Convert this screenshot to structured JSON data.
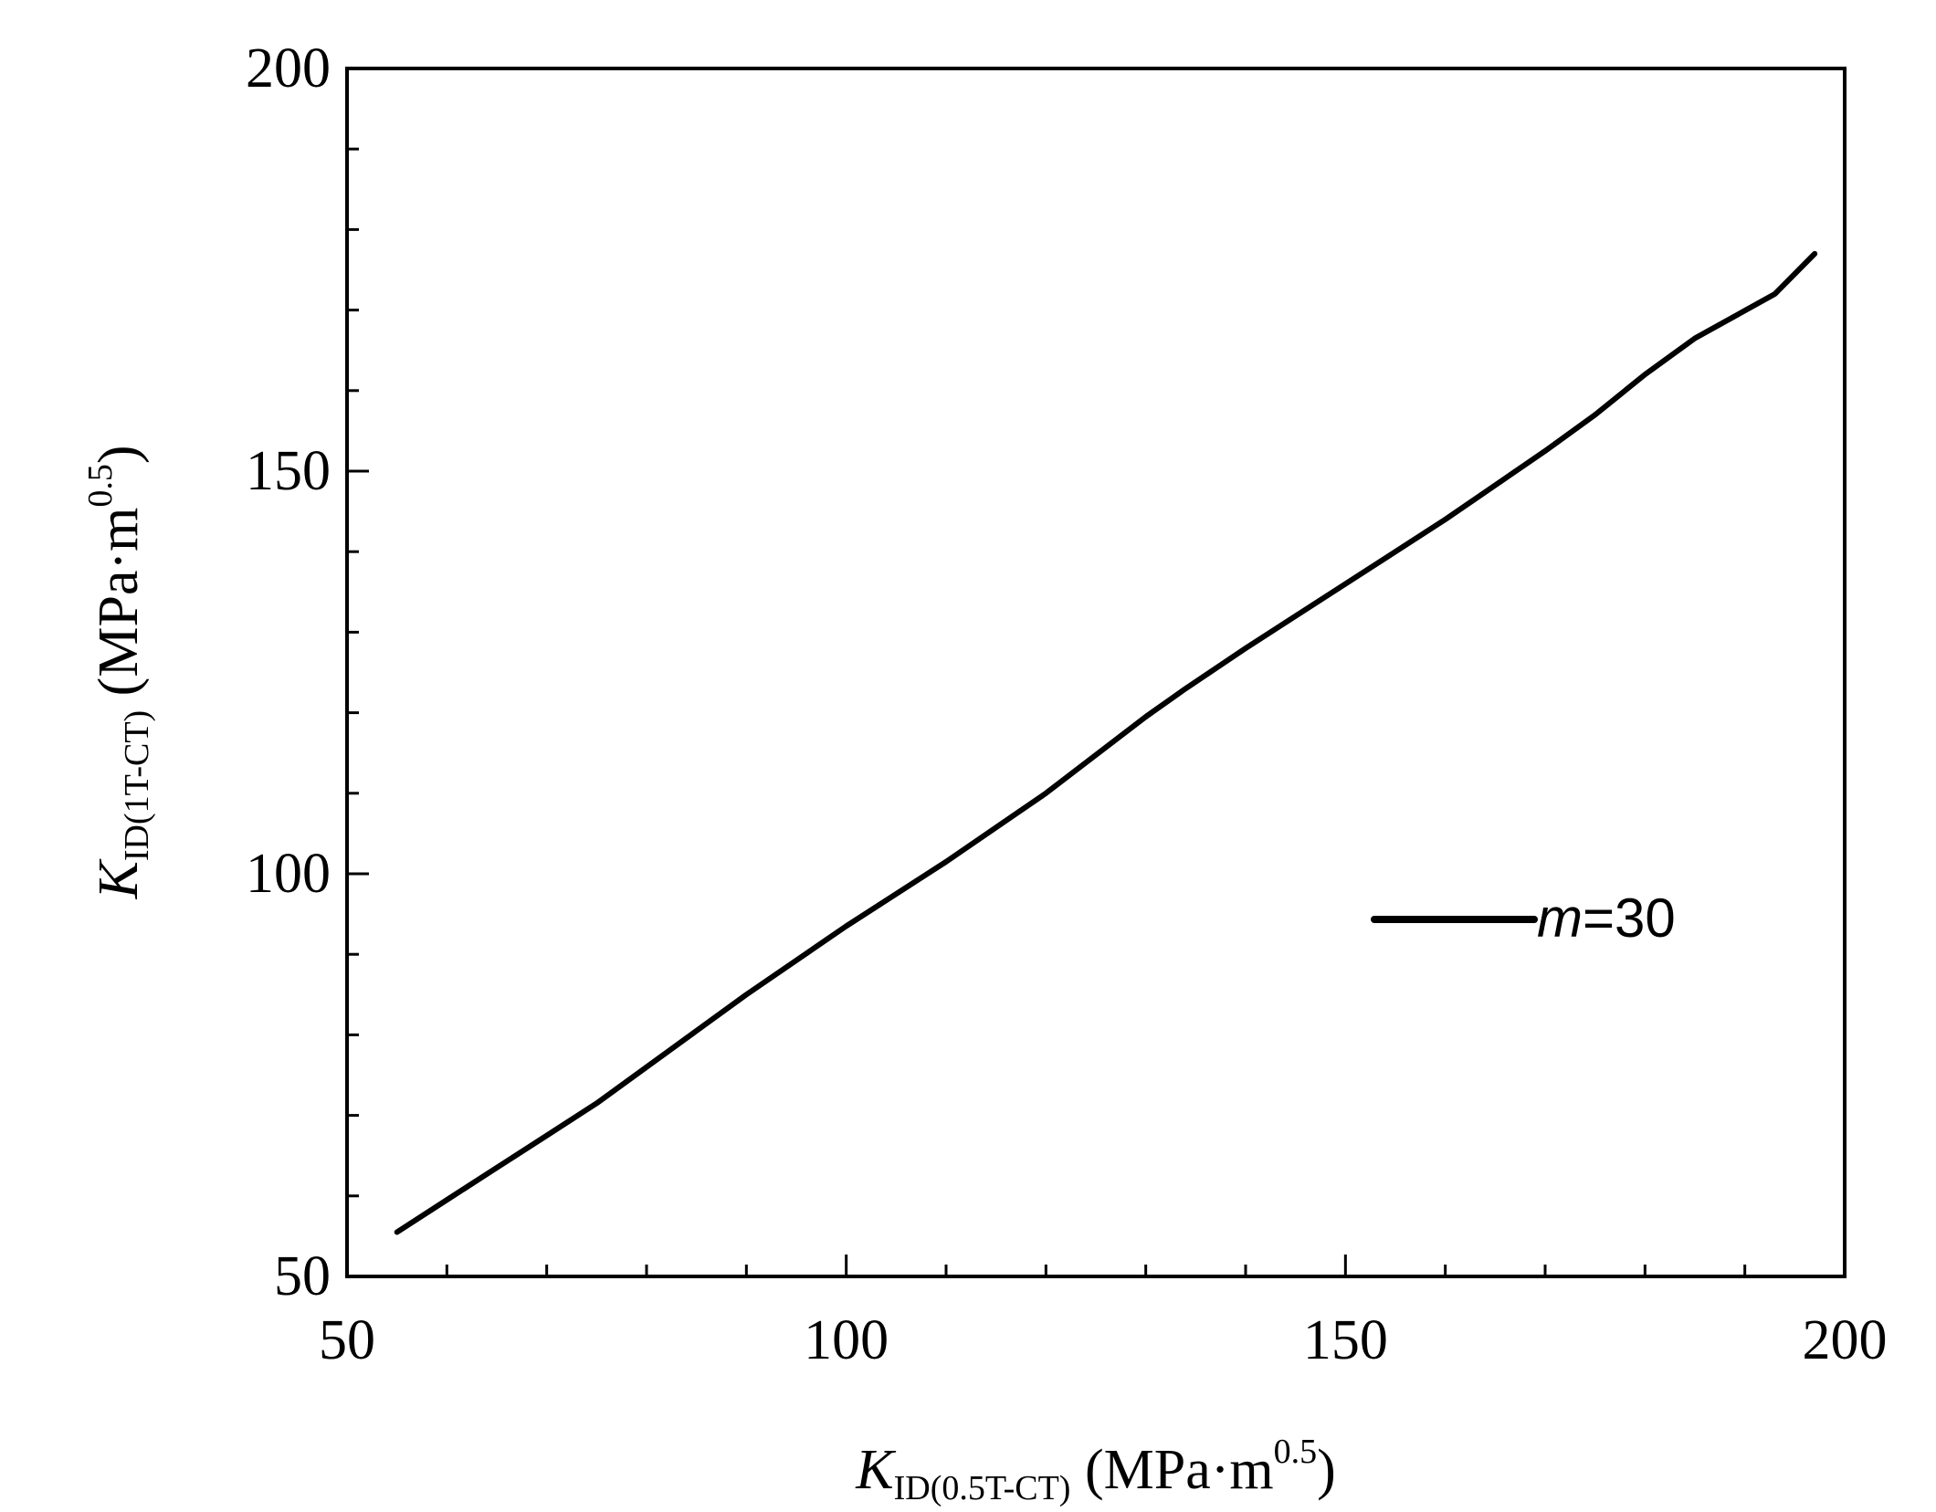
{
  "chart_data": {
    "type": "line",
    "xlim": [
      50,
      200
    ],
    "ylim": [
      50,
      200
    ],
    "xticks": [
      50,
      100,
      150,
      200
    ],
    "yticks": [
      50,
      100,
      150,
      200
    ],
    "x_minor_step": 10,
    "y_minor_step": 10,
    "xlabel": {
      "symbol": "K",
      "subscript": "ID(0.5T-CT)",
      "unit_open": " (MPa·m",
      "unit_sup": "0.5",
      "unit_close": ")"
    },
    "ylabel": {
      "symbol": "K",
      "subscript": "ID(1T-CT)",
      "unit_open": " (MPa·m",
      "unit_sup": "0.5",
      "unit_close": ")"
    },
    "grid": false,
    "legend_position": "middle-right",
    "series": [
      {
        "name_italic": "m",
        "name_rest": "=30",
        "color": "#000000",
        "x": [
          55,
          60,
          65,
          70,
          75,
          80,
          90,
          100,
          110,
          120,
          130,
          134,
          140,
          150,
          160,
          170,
          175,
          180,
          185,
          193,
          197
        ],
        "y": [
          55.5,
          59.5,
          63.5,
          67.5,
          71.5,
          76.0,
          85.0,
          93.5,
          101.5,
          110.0,
          119.5,
          123.0,
          128.0,
          136.0,
          144.0,
          152.5,
          157.0,
          162.0,
          166.5,
          172.0,
          177.0
        ]
      }
    ]
  }
}
